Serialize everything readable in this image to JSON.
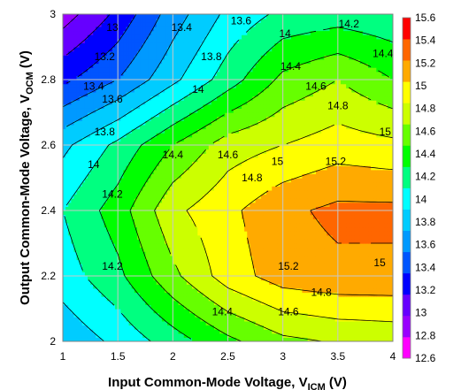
{
  "chart_data": {
    "type": "heatmap",
    "subtype": "filled-contour",
    "title": "",
    "xlabel": "Input Common-Mode Voltage, V",
    "xlabel_sub": "ICM",
    "xlabel_unit": " (V)",
    "ylabel": "Output Common-Mode Voltage, V",
    "ylabel_sub": "OCM",
    "ylabel_unit": " (V)",
    "xlim": [
      1,
      4
    ],
    "ylim": [
      2,
      3
    ],
    "x_ticks": [
      "1",
      "1.5",
      "2",
      "2.5",
      "3",
      "3.5",
      "4"
    ],
    "y_ticks": [
      "2",
      "2.2",
      "2.4",
      "2.6",
      "2.8",
      "3"
    ],
    "grid": true,
    "x": [
      1,
      1.5,
      2,
      2.5,
      3,
      3.5,
      4
    ],
    "y": [
      2,
      2.2,
      2.4,
      2.6,
      2.8,
      3
    ],
    "z": [
      [
        13.85,
        14.05,
        14.3,
        14.55,
        14.75,
        14.82,
        14.85
      ],
      [
        14.1,
        14.35,
        14.75,
        15.1,
        15.3,
        15.35,
        15.35
      ],
      [
        14.2,
        14.5,
        14.95,
        15.15,
        15.35,
        15.45,
        15.45
      ],
      [
        13.95,
        14.25,
        14.6,
        14.9,
        15.0,
        15.1,
        15.05
      ],
      [
        13.35,
        13.6,
        13.95,
        14.3,
        14.65,
        14.8,
        14.6
      ],
      [
        12.9,
        13.25,
        13.7,
        14.05,
        14.25,
        14.3,
        14.25
      ]
    ],
    "contour_labels": [
      {
        "text": "13",
        "x": 1.45,
        "y": 2.96
      },
      {
        "text": "13.2",
        "x": 1.38,
        "y": 2.87
      },
      {
        "text": "13.4",
        "x": 1.28,
        "y": 2.78
      },
      {
        "text": "13.6",
        "x": 1.45,
        "y": 2.74
      },
      {
        "text": "13.8",
        "x": 1.38,
        "y": 2.64
      },
      {
        "text": "14",
        "x": 1.28,
        "y": 2.54
      },
      {
        "text": "14.2",
        "x": 1.45,
        "y": 2.45
      },
      {
        "text": "13.4",
        "x": 2.08,
        "y": 2.96
      },
      {
        "text": "13.6",
        "x": 2.62,
        "y": 2.98
      },
      {
        "text": "13.8",
        "x": 2.35,
        "y": 2.87
      },
      {
        "text": "14",
        "x": 2.23,
        "y": 2.77
      },
      {
        "text": "14.4",
        "x": 2.0,
        "y": 2.57
      },
      {
        "text": "14.6",
        "x": 2.5,
        "y": 2.57
      },
      {
        "text": "14",
        "x": 3.02,
        "y": 2.94
      },
      {
        "text": "14.2",
        "x": 3.6,
        "y": 2.97
      },
      {
        "text": "14.4",
        "x": 3.91,
        "y": 2.88
      },
      {
        "text": "14.4",
        "x": 3.07,
        "y": 2.84
      },
      {
        "text": "14.6",
        "x": 3.3,
        "y": 2.78
      },
      {
        "text": "14.8",
        "x": 3.5,
        "y": 2.72
      },
      {
        "text": "15",
        "x": 3.93,
        "y": 2.64
      },
      {
        "text": "14.8",
        "x": 2.72,
        "y": 2.5
      },
      {
        "text": "15",
        "x": 2.95,
        "y": 2.55
      },
      {
        "text": "15.2",
        "x": 3.48,
        "y": 2.55
      },
      {
        "text": "15.2",
        "x": 3.05,
        "y": 2.23
      },
      {
        "text": "15",
        "x": 3.88,
        "y": 2.24
      },
      {
        "text": "14.2",
        "x": 1.45,
        "y": 2.23
      },
      {
        "text": "14.4",
        "x": 2.45,
        "y": 2.09
      },
      {
        "text": "14.6",
        "x": 3.05,
        "y": 2.09
      },
      {
        "text": "14.8",
        "x": 3.35,
        "y": 2.15
      }
    ],
    "colorbar": {
      "levels": [
        12.6,
        12.8,
        13,
        13.2,
        13.4,
        13.6,
        13.8,
        14,
        14.2,
        14.4,
        14.6,
        14.8,
        15,
        15.2,
        15.4,
        15.6
      ],
      "labels": [
        "15.6",
        "15.4",
        "15.2",
        "15",
        "14.8",
        "14.6",
        "14.4",
        "14.2",
        "14",
        "13.8",
        "13.6",
        "13.4",
        "13.2",
        "13",
        "12.8",
        "12.6"
      ],
      "colors": [
        "#ff00ff",
        "#9900ff",
        "#6600ff",
        "#0000ff",
        "#0055ff",
        "#0099ff",
        "#00ccff",
        "#00ffff",
        "#00ff80",
        "#00ff00",
        "#66ff00",
        "#ccff00",
        "#ffff00",
        "#ffaa00",
        "#ff6600",
        "#ff0000"
      ]
    }
  }
}
